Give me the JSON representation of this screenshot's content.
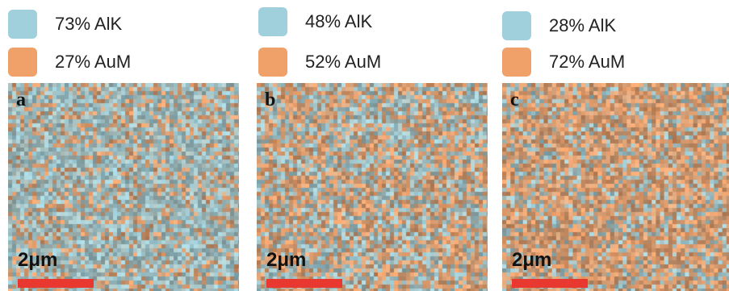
{
  "colors": {
    "alk": "#9fd0dc",
    "aum": "#f0a069",
    "scale_bar": "#e8382f"
  },
  "panels": [
    {
      "letter": "a",
      "alk_label": "73% AlK",
      "aum_label": "27% AuM",
      "alk_fraction": 0.73,
      "aum_fraction": 0.27,
      "scale_label": "2μm"
    },
    {
      "letter": "b",
      "alk_label": "48% AlK",
      "aum_label": "52% AuM",
      "alk_fraction": 0.48,
      "aum_fraction": 0.52,
      "scale_label": "2μm"
    },
    {
      "letter": "c",
      "alk_label": "28% AlK",
      "aum_label": "72% AuM",
      "alk_fraction": 0.28,
      "aum_fraction": 0.72,
      "scale_label": "2μm"
    }
  ]
}
